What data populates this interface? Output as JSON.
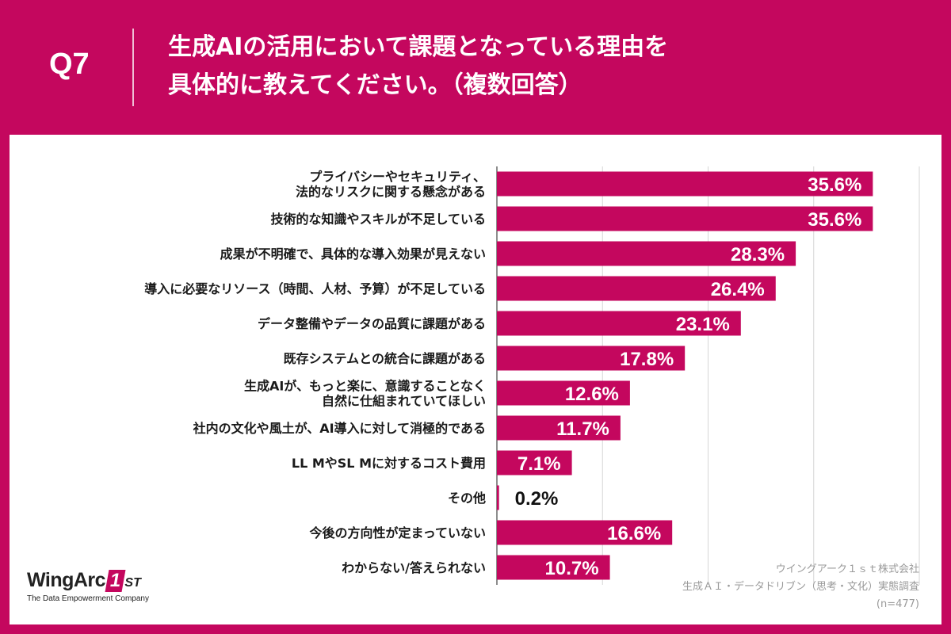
{
  "header": {
    "qnum": "Q7",
    "title_line1": "生成AIの活用において課題となっている理由を",
    "title_line2": "具体的に教えてください。（複数回答）"
  },
  "chart_data": {
    "type": "bar",
    "orientation": "horizontal",
    "title": "生成AIの活用において課題となっている理由を具体的に教えてください。（複数回答）",
    "categories": [
      [
        "プライバシーやセキュリティ、",
        "法的なリスクに関する懸念がある"
      ],
      [
        "技術的な知識やスキルが不足している"
      ],
      [
        "成果が不明確で、具体的な導入効果が見えない"
      ],
      [
        "導入に必要なリソース（時間、人材、予算）が不足している"
      ],
      [
        "データ整備やデータの品質に課題がある"
      ],
      [
        "既存システムとの統合に課題がある"
      ],
      [
        "生成AIが、もっと楽に、意識することなく",
        "自然に仕組まれていてほしい"
      ],
      [
        "社内の文化や風土が、AI導入に対して消極的である"
      ],
      [
        "LL MやSL Mに対するコスト費用"
      ],
      [
        "その他"
      ],
      [
        "今後の方向性が定まっていない"
      ],
      [
        "わからない/答えられない"
      ]
    ],
    "values": [
      35.6,
      35.6,
      28.3,
      26.4,
      23.1,
      17.8,
      12.6,
      11.7,
      7.1,
      0.2,
      16.6,
      10.7
    ],
    "labels": [
      "35.6%",
      "35.6%",
      "28.3%",
      "26.4%",
      "23.1%",
      "17.8%",
      "12.6%",
      "11.7%",
      "7.1%",
      "0.2%",
      "16.6%",
      "10.7%"
    ],
    "xlim": [
      0,
      40
    ],
    "grid": true,
    "bar_color": "#c4075e",
    "label_color_inside": "#ffffff",
    "label_color_outside": "#111111"
  },
  "logo": {
    "name": "WingArc",
    "mark": "1",
    "suffix": "ST",
    "tagline": "The Data Empowerment Company"
  },
  "source": {
    "line1": "ウイングアーク１ｓｔ株式会社",
    "line2": "生成ＡＩ・データドリブン（思考・文化）実態調査",
    "line3": "(n=477)"
  }
}
